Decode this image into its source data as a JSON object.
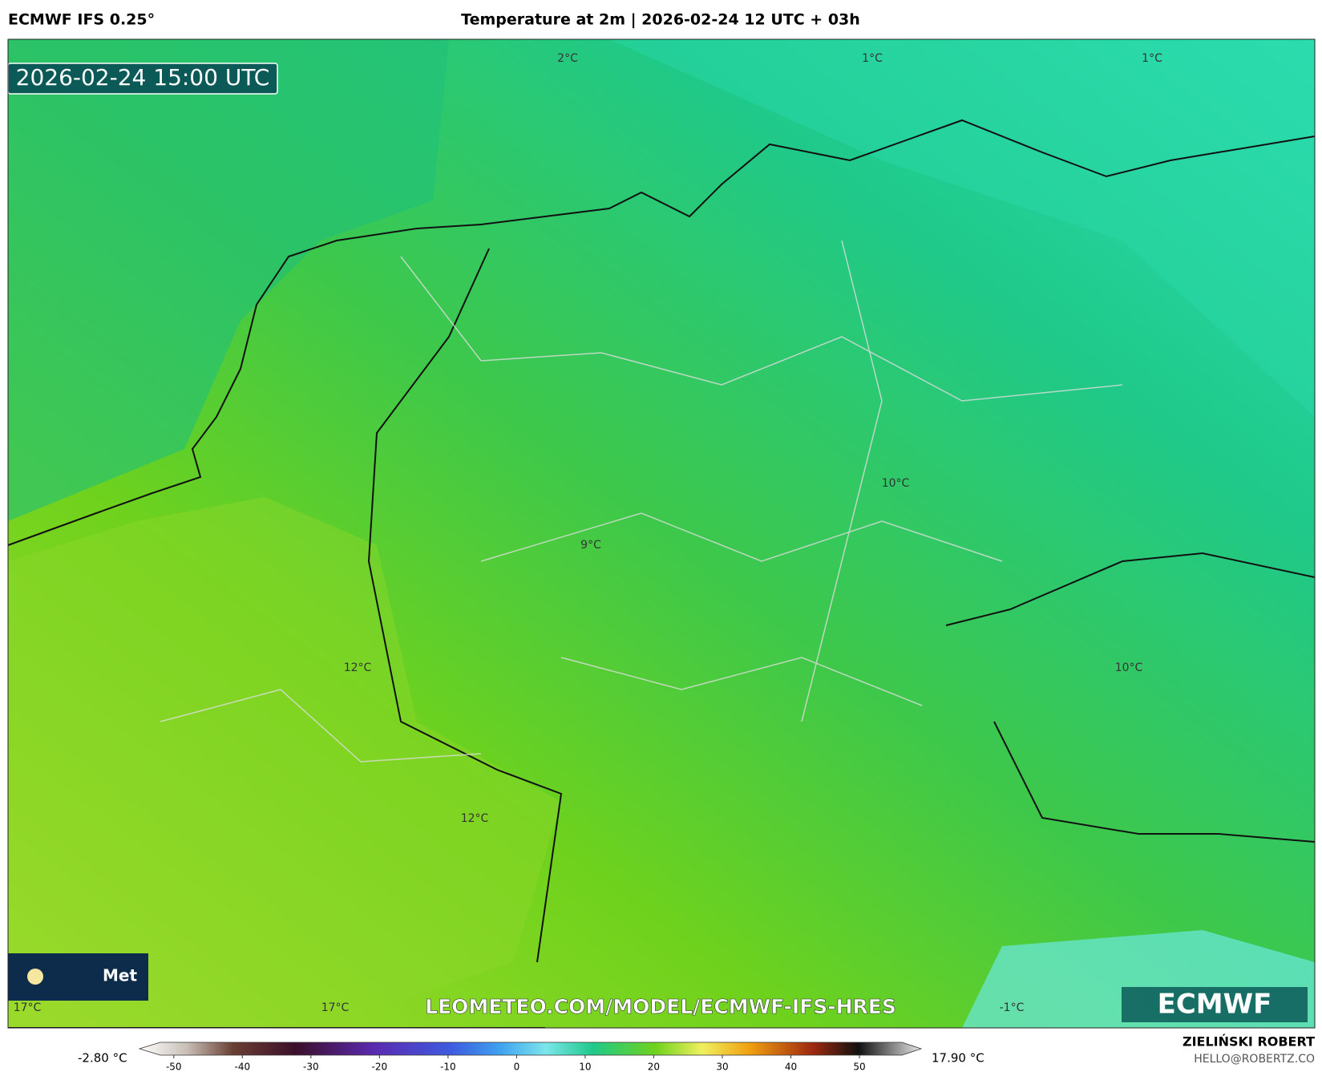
{
  "header": {
    "model": "ECMWF IFS 0.25°",
    "title": "Temperature at 2m | 2026-02-24 12 UTC + 03h"
  },
  "map": {
    "timestamp": "2026-02-24 15:00 UTC",
    "labels": [
      "2°C",
      "1°C",
      "1°C",
      "10°C",
      "9°C",
      "12°C",
      "10°C",
      "12°C",
      "17°C",
      "17°C",
      "-1°C"
    ],
    "badge": "Met",
    "watermark": "LEOMETEO.COM/MODEL/ECMWF-IFS-HRES",
    "logo": "ECMWF"
  },
  "colorbar": {
    "min_label": "-2.80 °C",
    "max_label": "17.90 °C",
    "xlim": [
      -55,
      59
    ],
    "ticks": [
      -50,
      -40,
      -30,
      -20,
      -10,
      0,
      10,
      20,
      30,
      40,
      50
    ]
  },
  "footer": {
    "author": "ZIELIŃSKI ROBERT",
    "email": "HELLO@ROBERTZ.CO"
  }
}
